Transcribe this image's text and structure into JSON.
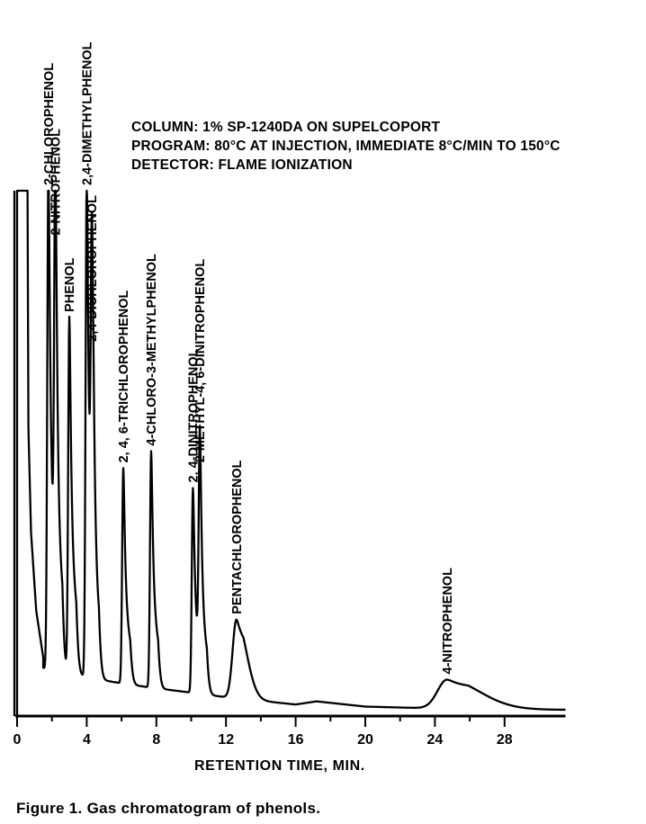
{
  "chart_data": {
    "type": "line",
    "title": "",
    "xlabel": "RETENTION TIME, MIN.",
    "ylabel": "",
    "xlim": [
      0,
      31.5
    ],
    "ylim": [
      0,
      100
    ],
    "x_ticks": [
      "0",
      "4",
      "8",
      "12",
      "16",
      "20",
      "24",
      "28"
    ],
    "x_tick_values": [
      0,
      4,
      8,
      12,
      16,
      20,
      24,
      28
    ],
    "minor_ticks": [
      2,
      6,
      10,
      14,
      18,
      22,
      26
    ],
    "grid": false,
    "conditions": [
      "COLUMN:  1% SP-1240DA ON SUPELCOPORT",
      "PROGRAM:  80°C AT INJECTION, IMMEDIATE 8°C/MIN TO 150°C",
      "DETECTOR:  FLAME IONIZATION"
    ],
    "peaks": [
      {
        "label": "2-CHLOROPHENOL",
        "rt": 1.8,
        "height": 96
      },
      {
        "label": "2-NITROPHENOL",
        "rt": 2.2,
        "height": 82
      },
      {
        "label": "PHENOL",
        "rt": 3.0,
        "height": 68
      },
      {
        "label": "2,4-DIMETHYLPHENOL",
        "rt": 4.0,
        "height": 95
      },
      {
        "label": "2,4-DICHLOROPHENOL",
        "rt": 4.3,
        "height": 63
      },
      {
        "label": "2, 4, 6-TRICHLOROPHENOL",
        "rt": 6.1,
        "height": 41
      },
      {
        "label": "4-CHLORO-3-METHYLPHENOL",
        "rt": 7.7,
        "height": 45
      },
      {
        "label": "2, 4-DINITROPHENOL",
        "rt": 10.1,
        "height": 39
      },
      {
        "label": "2-METHYL-4, 6-DINITROPHENOL",
        "rt": 10.5,
        "height": 43
      },
      {
        "label": "PENTACHLOROPHENOL",
        "rt": 12.6,
        "height": 15
      },
      {
        "label": "4-NITROPHENOL",
        "rt": 24.7,
        "height": 5.5
      }
    ],
    "baseline": [
      [
        0.1,
        12
      ],
      [
        0.6,
        10
      ],
      [
        1.7,
        9
      ],
      [
        2.7,
        8
      ],
      [
        3.9,
        7.5
      ],
      [
        5.5,
        6.5
      ],
      [
        7.5,
        5.5
      ],
      [
        9.9,
        4.5
      ],
      [
        12.2,
        3.5
      ],
      [
        16.0,
        2.2
      ],
      [
        17.2,
        2.8
      ],
      [
        20.0,
        1.8
      ],
      [
        23.5,
        1.5
      ],
      [
        27.0,
        1.3
      ],
      [
        31.0,
        1.2
      ]
    ]
  },
  "caption": "Figure 1.  Gas chromatogram of phenols."
}
